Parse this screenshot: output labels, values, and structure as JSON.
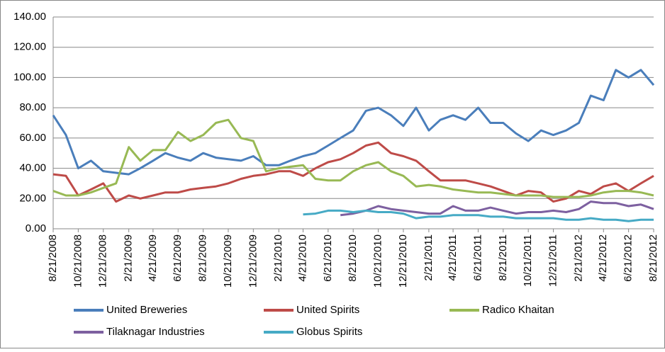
{
  "chart_data": {
    "type": "line",
    "x": [
      "8/21/2008",
      "9/21/2008",
      "10/21/2008",
      "11/21/2008",
      "12/21/2008",
      "1/21/2009",
      "2/21/2009",
      "3/21/2009",
      "4/21/2009",
      "5/21/2009",
      "6/21/2009",
      "7/21/2009",
      "8/21/2009",
      "9/21/2009",
      "10/21/2009",
      "11/21/2009",
      "12/21/2009",
      "1/21/2010",
      "2/21/2010",
      "3/21/2010",
      "4/21/2010",
      "5/21/2010",
      "6/21/2010",
      "7/21/2010",
      "8/21/2010",
      "9/21/2010",
      "10/21/2010",
      "11/21/2010",
      "12/21/2010",
      "1/21/2011",
      "2/21/2011",
      "3/21/2011",
      "4/21/2011",
      "5/21/2011",
      "6/21/2011",
      "7/21/2011",
      "8/21/2011",
      "9/21/2011",
      "10/21/2011",
      "11/21/2011",
      "12/21/2011",
      "1/21/2012",
      "2/21/2012",
      "3/21/2012",
      "4/21/2012",
      "5/21/2012",
      "6/21/2012",
      "7/21/2012",
      "8/21/2012"
    ],
    "series": [
      {
        "name": "United Breweries",
        "color": "#4a7ebb",
        "values": [
          75,
          62,
          40,
          45,
          38,
          37,
          36,
          40,
          45,
          50,
          47,
          45,
          50,
          47,
          46,
          45,
          48,
          42,
          42,
          45,
          48,
          50,
          55,
          60,
          65,
          78,
          80,
          75,
          68,
          80,
          65,
          72,
          75,
          72,
          80,
          70,
          70,
          63,
          58,
          65,
          62,
          65,
          70,
          88,
          85,
          105,
          100,
          105,
          95
        ]
      },
      {
        "name": "United Spirits",
        "color": "#be4b48",
        "values": [
          36,
          35,
          22,
          26,
          30,
          18,
          22,
          20,
          22,
          24,
          24,
          26,
          27,
          28,
          30,
          33,
          35,
          36,
          38,
          38,
          35,
          40,
          44,
          46,
          50,
          55,
          57,
          50,
          48,
          45,
          38,
          32,
          32,
          32,
          30,
          28,
          25,
          22,
          25,
          24,
          18,
          20,
          25,
          23,
          28,
          30,
          25,
          30,
          35
        ]
      },
      {
        "name": "Radico Khaitan",
        "color": "#98b954",
        "values": [
          25,
          22,
          22,
          24,
          27,
          30,
          54,
          45,
          52,
          52,
          64,
          58,
          62,
          70,
          72,
          60,
          58,
          38,
          40,
          41,
          42,
          33,
          32,
          32,
          38,
          42,
          44,
          38,
          35,
          28,
          29,
          28,
          26,
          25,
          24,
          24,
          23,
          22,
          22,
          22,
          21,
          21,
          21,
          22,
          24,
          25,
          25,
          24,
          22
        ]
      },
      {
        "name": "Tilaknagar Industries",
        "color": "#7d60a0",
        "values": [
          null,
          null,
          null,
          null,
          null,
          null,
          null,
          null,
          null,
          null,
          null,
          null,
          null,
          null,
          null,
          null,
          null,
          null,
          null,
          null,
          null,
          null,
          null,
          9,
          10,
          12,
          15,
          13,
          12,
          11,
          10,
          10,
          15,
          12,
          12,
          14,
          12,
          10,
          11,
          11,
          12,
          11,
          13,
          18,
          17,
          17,
          15,
          16,
          13
        ]
      },
      {
        "name": "Globus Spirits",
        "color": "#46aac5",
        "values": [
          null,
          null,
          null,
          null,
          null,
          null,
          null,
          null,
          null,
          null,
          null,
          null,
          null,
          null,
          null,
          null,
          null,
          null,
          null,
          null,
          9.5,
          10,
          12,
          12,
          11,
          12,
          11,
          11,
          10,
          7,
          8,
          8,
          9,
          9,
          9,
          8,
          8,
          7,
          7,
          7,
          7,
          6,
          6,
          7,
          6,
          6,
          5,
          6,
          6
        ]
      }
    ],
    "ylim": [
      0,
      140
    ],
    "yticks": [
      {
        "value": 0,
        "label": "0.00"
      },
      {
        "value": 20,
        "label": "20.00"
      },
      {
        "value": 40,
        "label": "40.00"
      },
      {
        "value": 60,
        "label": "60.00"
      },
      {
        "value": 80,
        "label": "80.00"
      },
      {
        "value": 100,
        "label": "100.00"
      },
      {
        "value": 120,
        "label": "120.00"
      },
      {
        "value": 140,
        "label": "140.00"
      }
    ],
    "xticks": [
      "8/21/2008",
      "10/21/2008",
      "12/21/2008",
      "2/21/2009",
      "4/21/2009",
      "6/21/2009",
      "8/21/2009",
      "10/21/2009",
      "12/21/2009",
      "2/21/2010",
      "4/21/2010",
      "6/21/2010",
      "8/21/2010",
      "10/21/2010",
      "12/21/2010",
      "2/21/2011",
      "4/21/2011",
      "6/21/2011",
      "8/21/2011",
      "10/21/2011",
      "12/21/2011",
      "2/21/2012",
      "4/21/2012",
      "6/21/2012",
      "8/21/2012"
    ],
    "grid": true,
    "legend": "bottom"
  }
}
